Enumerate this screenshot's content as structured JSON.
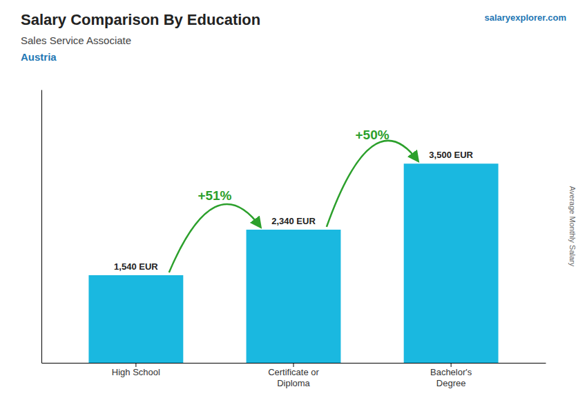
{
  "chart_data": {
    "type": "bar",
    "title": "Salary Comparison By Education",
    "subtitle": "Sales Service Associate",
    "y_label": "Average Monthly Salary",
    "annotations": [
      "Austria",
      "salaryexplorer.com",
      "+51%",
      "+50%"
    ],
    "categories": [
      "High School",
      "Certificate or\nDiploma",
      "Bachelor's\nDegree"
    ],
    "values": [
      1540,
      2340,
      3500
    ],
    "value_labels": [
      "1,540 EUR",
      "2,340 EUR",
      "3,500 EUR"
    ],
    "color": "#1ab8e0",
    "data_labels": true,
    "ylim": [
      0,
      4800
    ],
    "tick_labels": false,
    "grid": false
  }
}
